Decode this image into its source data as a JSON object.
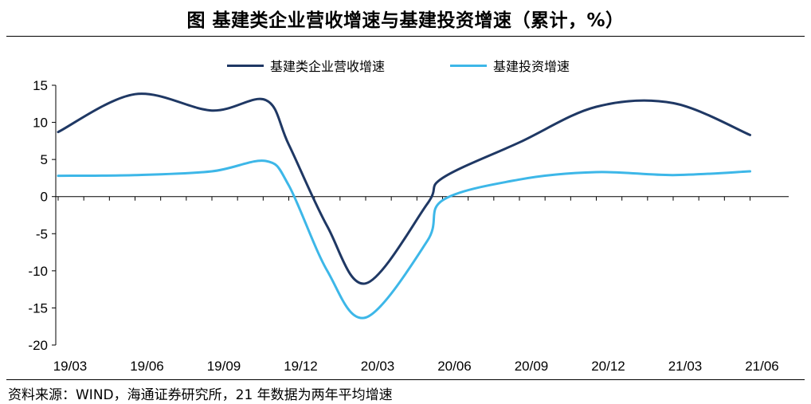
{
  "title": "图  基建类企业营收增速与基建投资增速（累计，%）",
  "source": "资料来源：WIND，海通证券研究所，21 年数据为两年平均增速",
  "colors": {
    "series1": "#1f3864",
    "series2": "#3db7e8",
    "axis": "#000000"
  },
  "chart_data": {
    "type": "line",
    "title": "基建类企业营收增速与基建投资增速（累计，%）",
    "xlabel": "",
    "ylabel": "",
    "ylim": [
      -20,
      15
    ],
    "yticks": [
      15,
      10,
      5,
      0,
      -5,
      -10,
      -15,
      -20
    ],
    "x_tick_labels": [
      "19/03",
      "19/06",
      "19/09",
      "19/12",
      "20/03",
      "20/06",
      "20/09",
      "20/12",
      "21/03",
      "21/06"
    ],
    "x": [
      "19/03",
      "19/06",
      "19/09",
      "19/11",
      "19/12",
      "20/01",
      "20/03",
      "20/05",
      "20/06",
      "20/09",
      "20/12",
      "21/03",
      "21/06"
    ],
    "x_index": [
      0,
      1,
      2,
      2.7,
      3,
      3.5,
      4,
      4.8,
      5,
      6,
      7,
      8,
      9
    ],
    "series": [
      {
        "name": "基建类企业营收增速",
        "color": "#1f3864",
        "values": [
          8.7,
          13.8,
          11.6,
          13.0,
          7.0,
          -4.0,
          -11.7,
          -1.0,
          2.5,
          7.3,
          12.1,
          12.6,
          8.3
        ]
      },
      {
        "name": "基建投资增速",
        "color": "#3db7e8",
        "values": [
          2.8,
          2.9,
          3.4,
          4.8,
          1.5,
          -10.0,
          -16.3,
          -6.0,
          -0.5,
          2.3,
          3.3,
          2.9,
          3.4
        ]
      }
    ],
    "legend": "top-center",
    "grid": false
  }
}
